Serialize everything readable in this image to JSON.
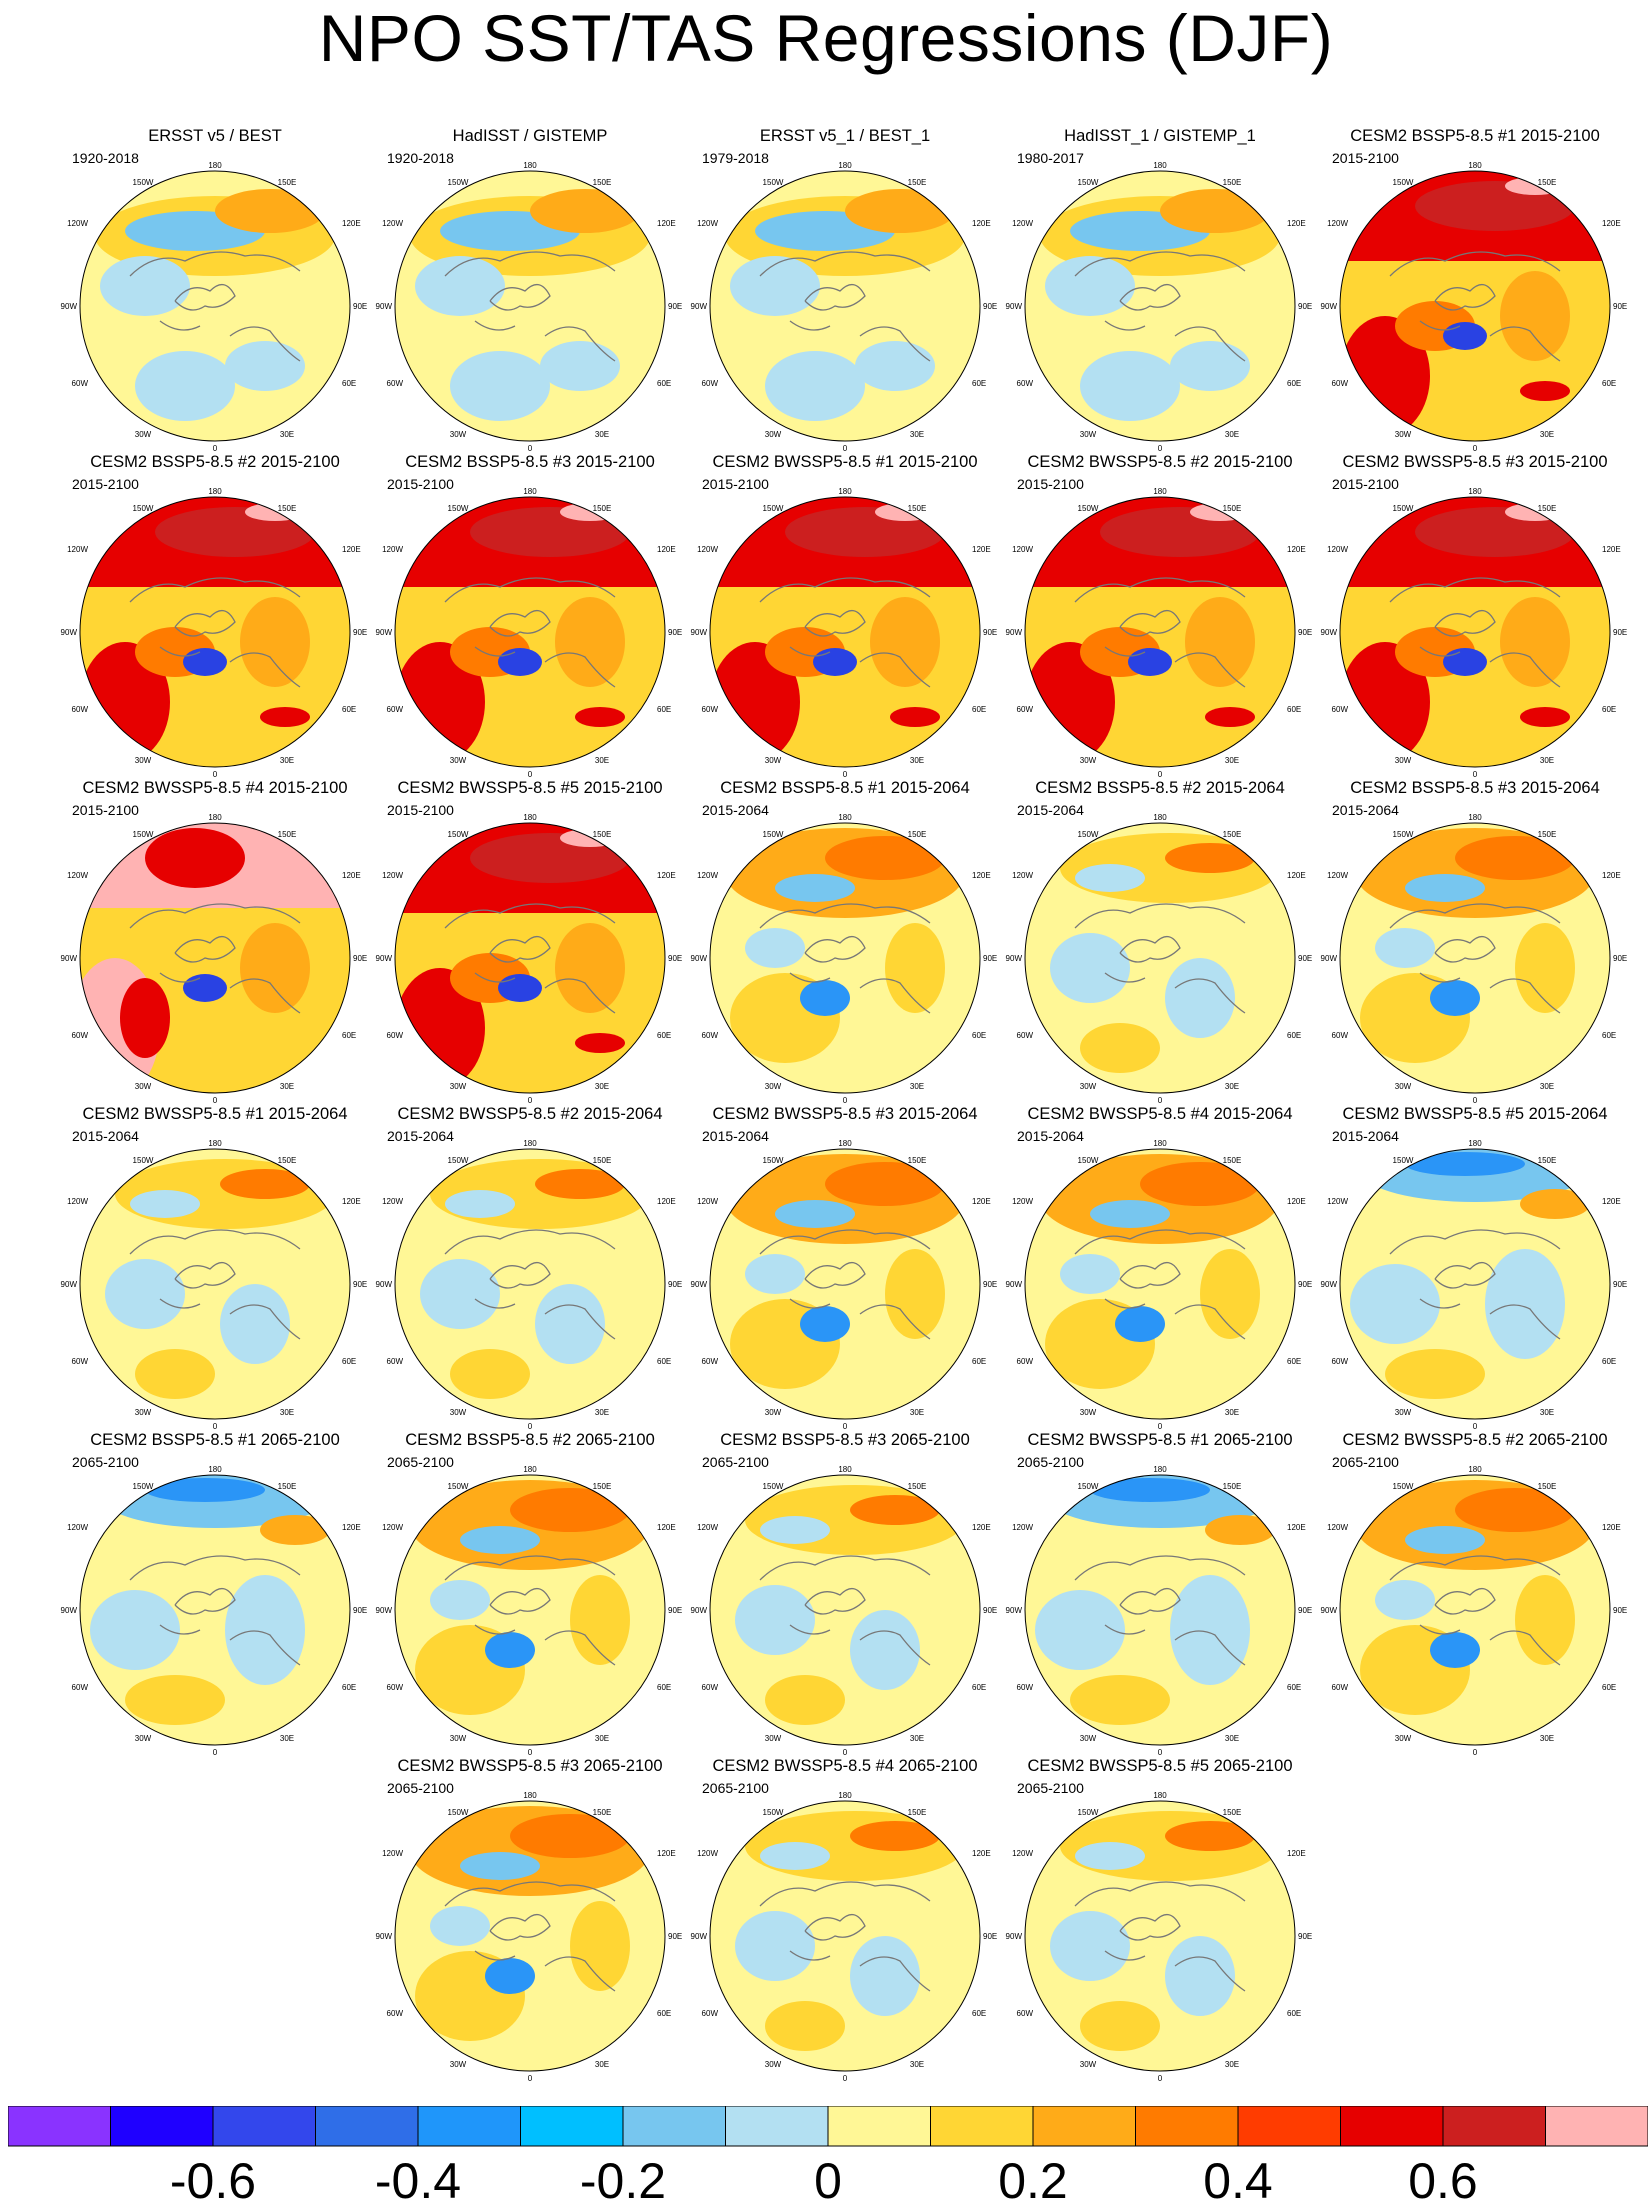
{
  "title": "NPO SST/TAS Regressions (DJF)",
  "colors": {
    "cont_light_blue": "#b3e0f2",
    "cont_pale_yellow": "#fff796",
    "cont_yellow": "#ffd634",
    "cont_orange_light": "#ffab18",
    "cont_orange": "#ff7b00",
    "cont_red_orange": "#ff3c00",
    "cont_red": "#e60000",
    "cont_dark_red": "#cc1f1f",
    "cont_pink": "#ffb3b3",
    "cont_mid_blue": "#77c6ef",
    "cont_blue": "#2a95f7",
    "cont_deep_blue": "#2942e3",
    "coastline": "#777777"
  },
  "map_labels": {
    "top": "180",
    "bottom": "0",
    "left": "90W",
    "right": "90E",
    "ul_inner": "150W",
    "ul_outer": "120W",
    "ur_inner": "150E",
    "ur_outer": "120E",
    "ll_outer": "60W",
    "ll_inner": "30W",
    "lr_outer": "60E",
    "lr_inner": "30E"
  },
  "panels": [
    {
      "title": "ERSST v5 / BEST",
      "period": "1920-2018",
      "style": "obs"
    },
    {
      "title": "HadISST / GISTEMP",
      "period": "1920-2018",
      "style": "obs"
    },
    {
      "title": "ERSST v5_1 / BEST_1",
      "period": "1979-2018",
      "style": "obs"
    },
    {
      "title": "HadISST_1 / GISTEMP_1",
      "period": "1980-2017",
      "style": "obs"
    },
    {
      "title": "CESM2 BSSP5-8.5 #1 2015-2100",
      "period": "2015-2100",
      "style": "hot"
    },
    {
      "title": "CESM2 BSSP5-8.5 #2 2015-2100",
      "period": "2015-2100",
      "style": "hot"
    },
    {
      "title": "CESM2 BSSP5-8.5 #3 2015-2100",
      "period": "2015-2100",
      "style": "hot"
    },
    {
      "title": "CESM2 BWSSP5-8.5 #1 2015-2100",
      "period": "2015-2100",
      "style": "hot"
    },
    {
      "title": "CESM2 BWSSP5-8.5 #2 2015-2100",
      "period": "2015-2100",
      "style": "hot"
    },
    {
      "title": "CESM2 BWSSP5-8.5 #3 2015-2100",
      "period": "2015-2100",
      "style": "hot"
    },
    {
      "title": "CESM2 BWSSP5-8.5 #4 2015-2100",
      "period": "2015-2100",
      "style": "pink"
    },
    {
      "title": "CESM2 BWSSP5-8.5 #5 2015-2100",
      "period": "2015-2100",
      "style": "hot"
    },
    {
      "title": "CESM2 BSSP5-8.5 #1 2015-2064",
      "period": "2015-2064",
      "style": "warm"
    },
    {
      "title": "CESM2 BSSP5-8.5 #2 2015-2064",
      "period": "2015-2064",
      "style": "mild"
    },
    {
      "title": "CESM2 BSSP5-8.5 #3 2015-2064",
      "period": "2015-2064",
      "style": "warm"
    },
    {
      "title": "CESM2 BWSSP5-8.5 #1 2015-2064",
      "period": "2015-2064",
      "style": "mild"
    },
    {
      "title": "CESM2 BWSSP5-8.5 #2 2015-2064",
      "period": "2015-2064",
      "style": "mild"
    },
    {
      "title": "CESM2 BWSSP5-8.5 #3 2015-2064",
      "period": "2015-2064",
      "style": "warm"
    },
    {
      "title": "CESM2 BWSSP5-8.5 #4 2015-2064",
      "period": "2015-2064",
      "style": "warm"
    },
    {
      "title": "CESM2 BWSSP5-8.5 #5 2015-2064",
      "period": "2015-2064",
      "style": "cool"
    },
    {
      "title": "CESM2 BSSP5-8.5 #1 2065-2100",
      "period": "2065-2100",
      "style": "cool"
    },
    {
      "title": "CESM2 BSSP5-8.5 #2 2065-2100",
      "period": "2065-2100",
      "style": "warm"
    },
    {
      "title": "CESM2 BSSP5-8.5 #3 2065-2100",
      "period": "2065-2100",
      "style": "mild"
    },
    {
      "title": "CESM2 BWSSP5-8.5 #1 2065-2100",
      "period": "2065-2100",
      "style": "cool"
    },
    {
      "title": "CESM2 BWSSP5-8.5 #2 2065-2100",
      "period": "2065-2100",
      "style": "warm"
    },
    {
      "title": "CESM2 BWSSP5-8.5 #3 2065-2100",
      "period": "2065-2100",
      "style": "warm"
    },
    {
      "title": "CESM2 BWSSP5-8.5 #4 2065-2100",
      "period": "2065-2100",
      "style": "mild"
    },
    {
      "title": "CESM2 BWSSP5-8.5 #5 2065-2100",
      "period": "2065-2100",
      "style": "mild"
    }
  ],
  "colorbar": {
    "colors": [
      "#8a33ff",
      "#1f00ff",
      "#3347ec",
      "#2f6ee8",
      "#1f96fa",
      "#00bfff",
      "#77c6ef",
      "#b3e0f2",
      "#fff796",
      "#ffd634",
      "#ffab18",
      "#ff7b00",
      "#ff3c00",
      "#e60000",
      "#cc1f1f",
      "#ffb3b3"
    ],
    "tick_labels": [
      "-0.6",
      "-0.4",
      "-0.2",
      "0",
      "0.2",
      "0.4",
      "0.6"
    ],
    "tick_values": [
      -0.6,
      -0.4,
      -0.2,
      0,
      0.2,
      0.4,
      0.6
    ],
    "min": -0.8,
    "max": 0.8
  }
}
